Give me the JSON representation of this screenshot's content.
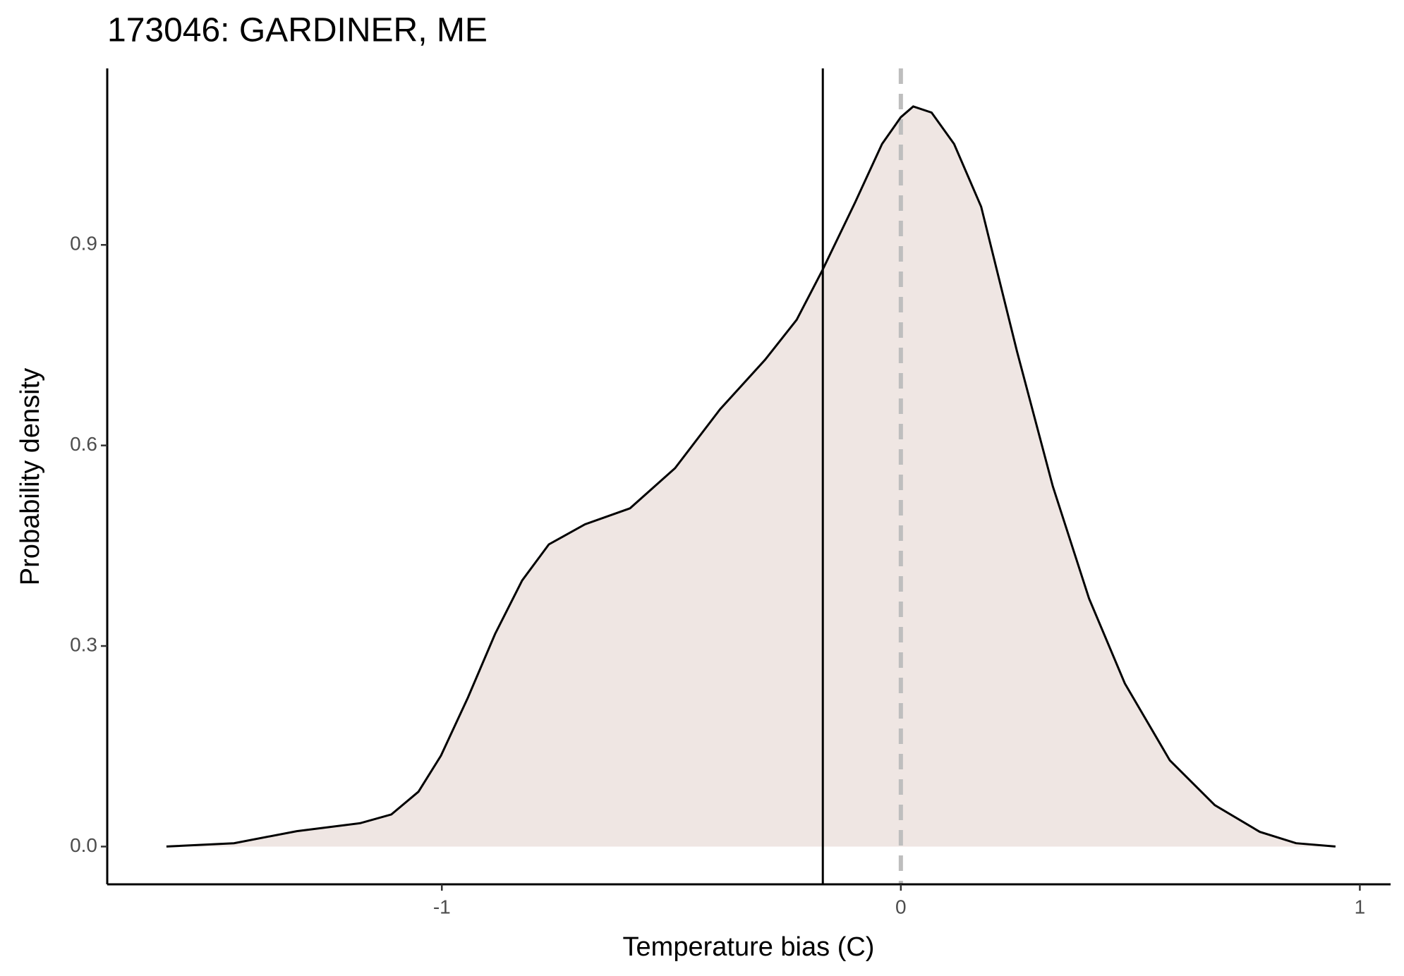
{
  "chart_data": {
    "type": "density",
    "title": "173046: GARDINER, ME",
    "xlabel": "Temperature bias (C)",
    "ylabel": "Probability density",
    "x": [
      -1.6,
      -1.453,
      -1.316,
      -1.178,
      -1.11,
      -1.051,
      -1.002,
      -0.943,
      -0.884,
      -0.825,
      -0.767,
      -0.688,
      -0.59,
      -0.492,
      -0.394,
      -0.296,
      -0.227,
      -0.171,
      -0.1,
      -0.041,
      0,
      0.027,
      0.067,
      0.116,
      0.175,
      0.253,
      0.331,
      0.41,
      0.488,
      0.586,
      0.684,
      0.782,
      0.861,
      0.947
    ],
    "values": [
      0,
      0.005,
      0.023,
      0.035,
      0.048,
      0.082,
      0.136,
      0.223,
      0.318,
      0.398,
      0.452,
      0.482,
      0.506,
      0.566,
      0.654,
      0.728,
      0.788,
      0.862,
      0.963,
      1.051,
      1.091,
      1.107,
      1.098,
      1.051,
      0.957,
      0.741,
      0.539,
      0.371,
      0.244,
      0.129,
      0.062,
      0.022,
      0.005,
      0
    ],
    "color": "#000000",
    "fill": "#efe6e3",
    "xlim": [
      -1.729,
      1.067
    ],
    "ylim": [
      -0.0565,
      1.164
    ],
    "xticks": [
      -1,
      0,
      1
    ],
    "yticks": [
      {
        "value": 0,
        "label": "0.0"
      },
      0.3,
      0.6,
      0.9
    ],
    "vlines": [
      {
        "value": -0.17,
        "color": "#000000",
        "dash": false
      },
      {
        "value": 0,
        "color": "#bebebe",
        "dash": true
      }
    ]
  }
}
